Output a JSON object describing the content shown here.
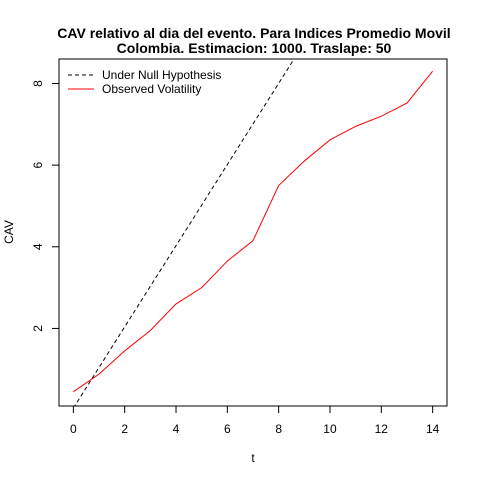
{
  "chart_data": {
    "type": "line",
    "title_lines": [
      "CAV relativo al dia del evento. Para Indices Promedio Movil",
      "Colombia. Estimacion: 1000. Traslape: 50"
    ],
    "xlabel": "t",
    "ylabel": "CAV",
    "xlim": [
      -0.56,
      14.56
    ],
    "ylim": [
      0.1,
      8.6
    ],
    "x_ticks": [
      0,
      2,
      4,
      6,
      8,
      10,
      12,
      14
    ],
    "y_ticks": [
      2,
      4,
      6,
      8
    ],
    "grid": false,
    "legend_position": "top-left",
    "series": [
      {
        "name": "Under Null Hypothesis",
        "style": "dashed",
        "color": "#000000",
        "x": [
          0,
          8.6
        ],
        "y": [
          0.05,
          8.6
        ]
      },
      {
        "name": "Observed Volatility",
        "style": "solid",
        "color": "#ff0000",
        "x": [
          0,
          1,
          2,
          3,
          4,
          5,
          6,
          7,
          8,
          9,
          10,
          11,
          12,
          13,
          14
        ],
        "y": [
          0.45,
          0.88,
          1.45,
          1.95,
          2.6,
          3.0,
          3.65,
          4.15,
          5.5,
          6.1,
          6.62,
          6.95,
          7.2,
          7.52,
          8.3
        ]
      }
    ]
  }
}
